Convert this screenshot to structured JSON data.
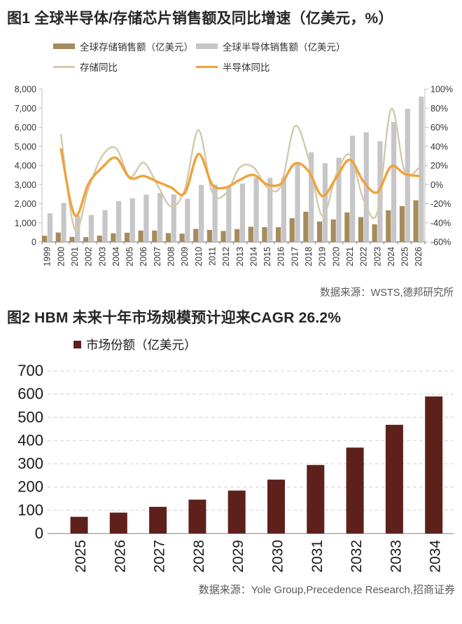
{
  "fig1": {
    "title": "图1  全球半导体/存储芯片销售额及同比增速（亿美元，%）",
    "source": "数据来源：WSTS,德邦研究所",
    "legend": [
      {
        "label": "全球存储销售额（亿美元）",
        "swatch": "bar",
        "color": "#A68B5C"
      },
      {
        "label": "全球半导体销售额（亿美元）",
        "swatch": "bar",
        "color": "#C6C6C8"
      },
      {
        "label": "存储同比",
        "swatch": "line",
        "color": "#D2C9AC"
      },
      {
        "label": "半导体同比",
        "swatch": "line",
        "color": "#F0A23B"
      }
    ]
  },
  "fig2": {
    "title": "图2  HBM 未来十年市场规模预计迎来CAGR 26.2%",
    "legend": [
      {
        "label": "市场份额（亿美元）",
        "swatch": "square",
        "color": "#5E201B"
      }
    ],
    "source": "数据来源：Yole Group,Precedence Research,招商证券"
  },
  "colors": {
    "memory_bar": "#A68B5C",
    "semi_bar": "#C6C6C8",
    "memory_yoy_line": "#D2C9AC",
    "semi_yoy_line": "#F0A23B",
    "hbm_bar": "#5E201B",
    "title_text": "#262626",
    "source_text": "#595959",
    "axis_line": "#BFBFBF",
    "x_axis_line": "#7F7F7F",
    "grid_dashed": "#D9D9D9",
    "tick_text": "#333333"
  },
  "chart_data": [
    {
      "type": "bar",
      "subtype": "combo-bar-line",
      "title": "全球半导体/存储芯片销售额及同比增速（亿美元，%）",
      "x": [
        "1999",
        "2000",
        "2001",
        "2002",
        "2003",
        "2004",
        "2005",
        "2006",
        "2007",
        "2008",
        "2009",
        "2010",
        "2011",
        "2012",
        "2013",
        "2014",
        "2015",
        "2016",
        "2017",
        "2018",
        "2019",
        "2020",
        "2021",
        "2022",
        "2023",
        "2024",
        "2025",
        "2026"
      ],
      "series": [
        {
          "name": "全球存储销售额（亿美元）",
          "type": "bar",
          "axis": "left",
          "color": "#A68B5C",
          "values": [
            323,
            492,
            260,
            251,
            325,
            447,
            482,
            595,
            594,
            456,
            434,
            680,
            624,
            570,
            670,
            792,
            772,
            768,
            1240,
            1580,
            1064,
            1175,
            1538,
            1298,
            923,
            1652,
            1870,
            2180
          ]
        },
        {
          "name": "全球半导体销售额（亿美元）",
          "type": "bar",
          "axis": "left",
          "color": "#C6C6C8",
          "values": [
            1494,
            2044,
            1390,
            1407,
            1664,
            2130,
            2275,
            2477,
            2556,
            2486,
            2263,
            2983,
            2995,
            2916,
            3056,
            3358,
            3352,
            3389,
            4122,
            4688,
            4123,
            4404,
            5559,
            5741,
            5269,
            6276,
            6970,
            7607
          ]
        },
        {
          "name": "存储同比",
          "type": "line",
          "axis": "right",
          "color": "#D2C9AC",
          "start_index": 1,
          "values": [
            52,
            -47,
            -4,
            30,
            38,
            8,
            23,
            0,
            -23,
            -5,
            57,
            -8,
            -9,
            18,
            18,
            -3,
            -1,
            61,
            27,
            -33,
            10,
            31,
            -16,
            -29,
            79,
            13,
            17
          ]
        },
        {
          "name": "半导体同比",
          "type": "line",
          "axis": "right",
          "color": "#F0A23B",
          "start_index": 1,
          "values": [
            37,
            -32,
            1,
            18,
            28,
            7,
            9,
            3,
            -3,
            -9,
            32,
            0,
            -3,
            5,
            10,
            0,
            1,
            22,
            14,
            -12,
            7,
            26,
            3,
            -8,
            19,
            11,
            9
          ]
        }
      ],
      "axis_left": {
        "min": 0,
        "max": 8000,
        "step": 1000,
        "ticks": [
          "0",
          "1,000",
          "2,000",
          "3,000",
          "4,000",
          "5,000",
          "6,000",
          "7,000",
          "8,000"
        ]
      },
      "axis_right": {
        "min": -60,
        "max": 100,
        "step": 20,
        "unit": "%",
        "ticks": [
          "-60%",
          "-40%",
          "-20%",
          "0%",
          "20%",
          "40%",
          "60%",
          "80%",
          "100%"
        ]
      },
      "grid": false,
      "legend_position": "top"
    },
    {
      "type": "bar",
      "title": "HBM 未来十年市场规模预计迎来CAGR 26.2%",
      "series_name": "市场份额（亿美元）",
      "categories": [
        "2025",
        "2026",
        "2027",
        "2028",
        "2029",
        "2030",
        "2031",
        "2032",
        "2033",
        "2034"
      ],
      "values": [
        72,
        90,
        115,
        146,
        185,
        232,
        295,
        370,
        468,
        590
      ],
      "color": "#5E201B",
      "ylim": [
        0,
        700
      ],
      "step": 100,
      "yticks": [
        "0",
        "100",
        "200",
        "300",
        "400",
        "500",
        "600",
        "700"
      ],
      "grid": "horizontal-dashed",
      "legend_position": "top"
    }
  ]
}
